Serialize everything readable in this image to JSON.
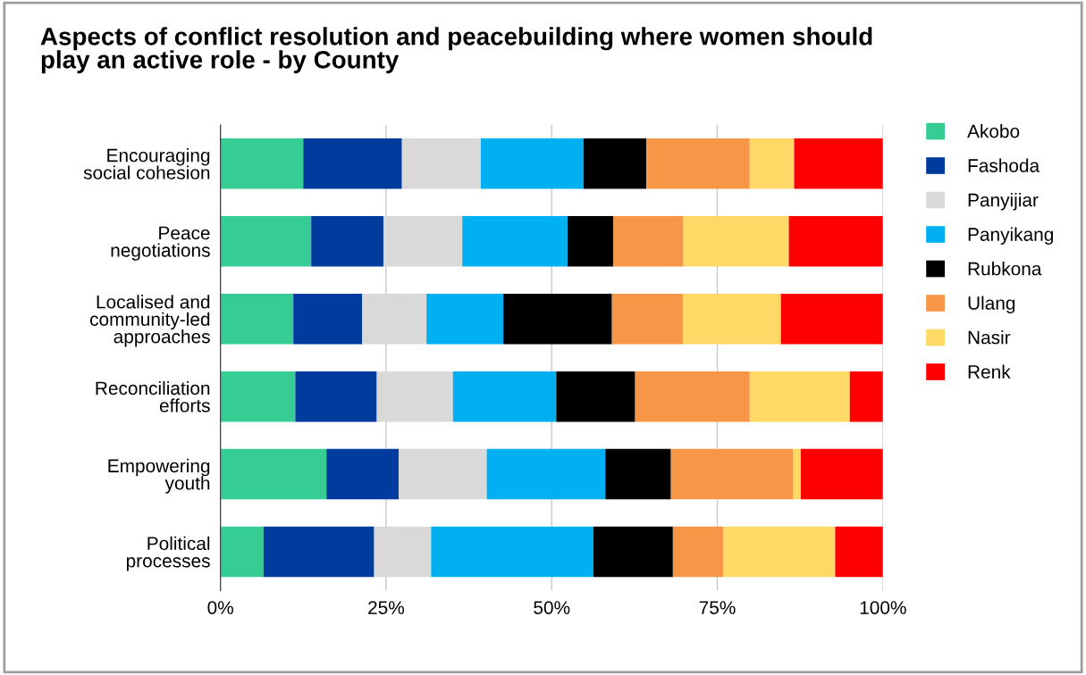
{
  "chart_data": {
    "type": "bar",
    "orientation": "horizontal",
    "stacked": true,
    "title": "Aspects of conflict resolution and peacebuilding where women should\nplay an active role - by County",
    "categories": [
      "Encouraging\nsocial cohesion",
      "Peace\nnegotiations",
      "Localised and\ncommunity-led\napproaches",
      "Reconciliation\nefforts",
      "Empowering\nyouth",
      "Political\nprocesses"
    ],
    "series": [
      {
        "name": "Akobo",
        "color": "#35cd93",
        "values": [
          12.5,
          13.7,
          11.0,
          11.3,
          16.0,
          6.5
        ]
      },
      {
        "name": "Fashoda",
        "color": "#003c9e",
        "values": [
          14.9,
          10.9,
          10.4,
          12.3,
          10.9,
          16.7
        ]
      },
      {
        "name": "Panyijiar",
        "color": "#d9d9d9",
        "values": [
          11.9,
          11.9,
          9.7,
          11.5,
          13.3,
          8.6
        ]
      },
      {
        "name": "Panyikang",
        "color": "#00b0f0",
        "values": [
          15.5,
          15.9,
          11.6,
          15.6,
          17.9,
          24.5
        ]
      },
      {
        "name": "Rubkona",
        "color": "#000000",
        "values": [
          9.5,
          6.9,
          16.4,
          11.9,
          9.9,
          12.0
        ]
      },
      {
        "name": "Ulang",
        "color": "#f79646",
        "values": [
          15.6,
          10.6,
          10.7,
          17.3,
          18.4,
          7.6
        ]
      },
      {
        "name": "Nasir",
        "color": "#fed966",
        "values": [
          6.7,
          15.9,
          14.8,
          15.1,
          1.2,
          16.9
        ]
      },
      {
        "name": "Renk",
        "color": "#ff0000",
        "values": [
          13.4,
          14.2,
          15.4,
          5.0,
          12.4,
          7.2
        ]
      }
    ],
    "xlim": [
      0,
      100
    ],
    "xticks": [
      {
        "value": 0,
        "label": "0%"
      },
      {
        "value": 25,
        "label": "25%"
      },
      {
        "value": 50,
        "label": "50%"
      },
      {
        "value": 75,
        "label": "75%"
      },
      {
        "value": 100,
        "label": "100%"
      }
    ],
    "grid": "x",
    "legend": "right"
  }
}
